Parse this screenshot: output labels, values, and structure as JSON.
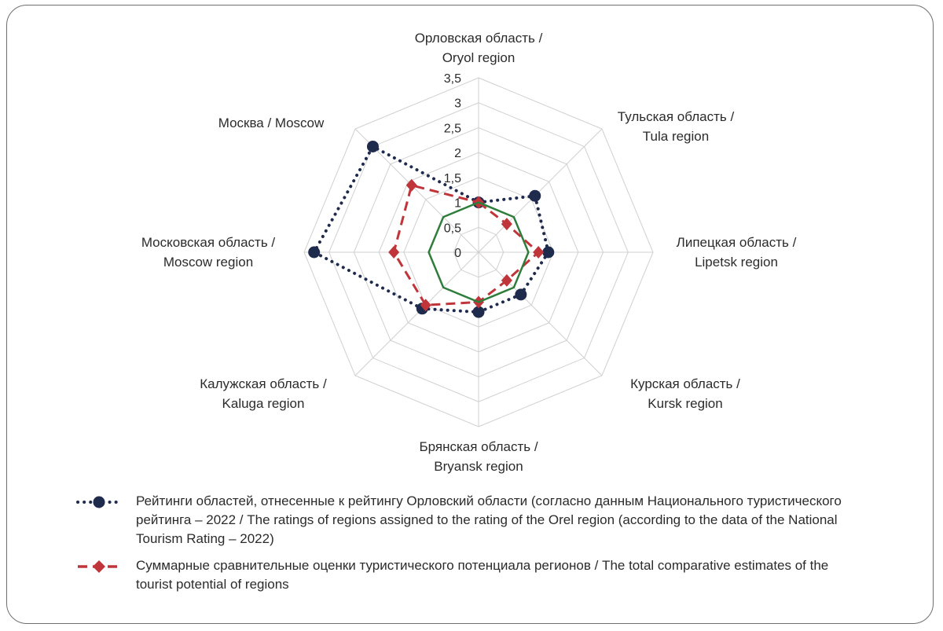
{
  "chart_data": {
    "type": "radar",
    "axes": [
      {
        "ru": "Орловская область /",
        "en": "Oryol region"
      },
      {
        "ru": "Тульская область /",
        "en": "Tula region"
      },
      {
        "ru": "Липецкая область /",
        "en": "Lipetsk region"
      },
      {
        "ru": "Курская область /",
        "en": "Kursk region"
      },
      {
        "ru": "Брянская область /",
        "en": "Bryansk region"
      },
      {
        "ru": "Калужская область /",
        "en": "Kaluga region"
      },
      {
        "ru": "Московская область /",
        "en": "Moscow region"
      },
      {
        "ru": "Москва / Moscow",
        "en": ""
      }
    ],
    "ticks": [
      "0",
      "0,5",
      "1",
      "1,5",
      "2",
      "2,5",
      "3",
      "3,5"
    ],
    "rlim": [
      0,
      3.5
    ],
    "grid": true,
    "legend_position": "bottom",
    "series": [
      {
        "name": "Рейтинги областей, отнесенные к рейтингу Орловский области (согласно данным Национального туристического рейтинга – 2022 / The ratings of regions assigned to the rating of the Orel region (according to the data of the National Tourism Rating – 2022)",
        "values": [
          1.0,
          1.6,
          1.4,
          1.2,
          1.2,
          1.6,
          3.3,
          3.0
        ],
        "color": "#1f2b4d",
        "style": "dotted",
        "marker": "circle"
      },
      {
        "name": "Суммарные сравнительные оценки туристического потенциала регионов / The total comparative estimates of the tourist potential of regions",
        "values": [
          1.0,
          0.8,
          1.2,
          0.8,
          1.0,
          1.5,
          1.7,
          1.9
        ],
        "color": "#c0353a",
        "style": "dashed",
        "marker": "diamond"
      },
      {
        "name": "",
        "values": [
          1.0,
          1.0,
          1.0,
          1.0,
          1.0,
          1.0,
          1.0,
          1.0
        ],
        "color": "#2e7d3a",
        "style": "solid",
        "marker": "none"
      }
    ]
  },
  "legend": [
    {
      "text": "Рейтинги областей, отнесенные к рейтингу Орловский области (согласно данным Национального туристического рейтинга – 2022 / The ratings of regions assigned to the rating of the Orel region (according to the data of the National Tourism Rating – 2022)"
    },
    {
      "text": "Суммарные сравнительные оценки туристического потенциала регионов / The total comparative estimates of the tourist potential of regions"
    }
  ]
}
